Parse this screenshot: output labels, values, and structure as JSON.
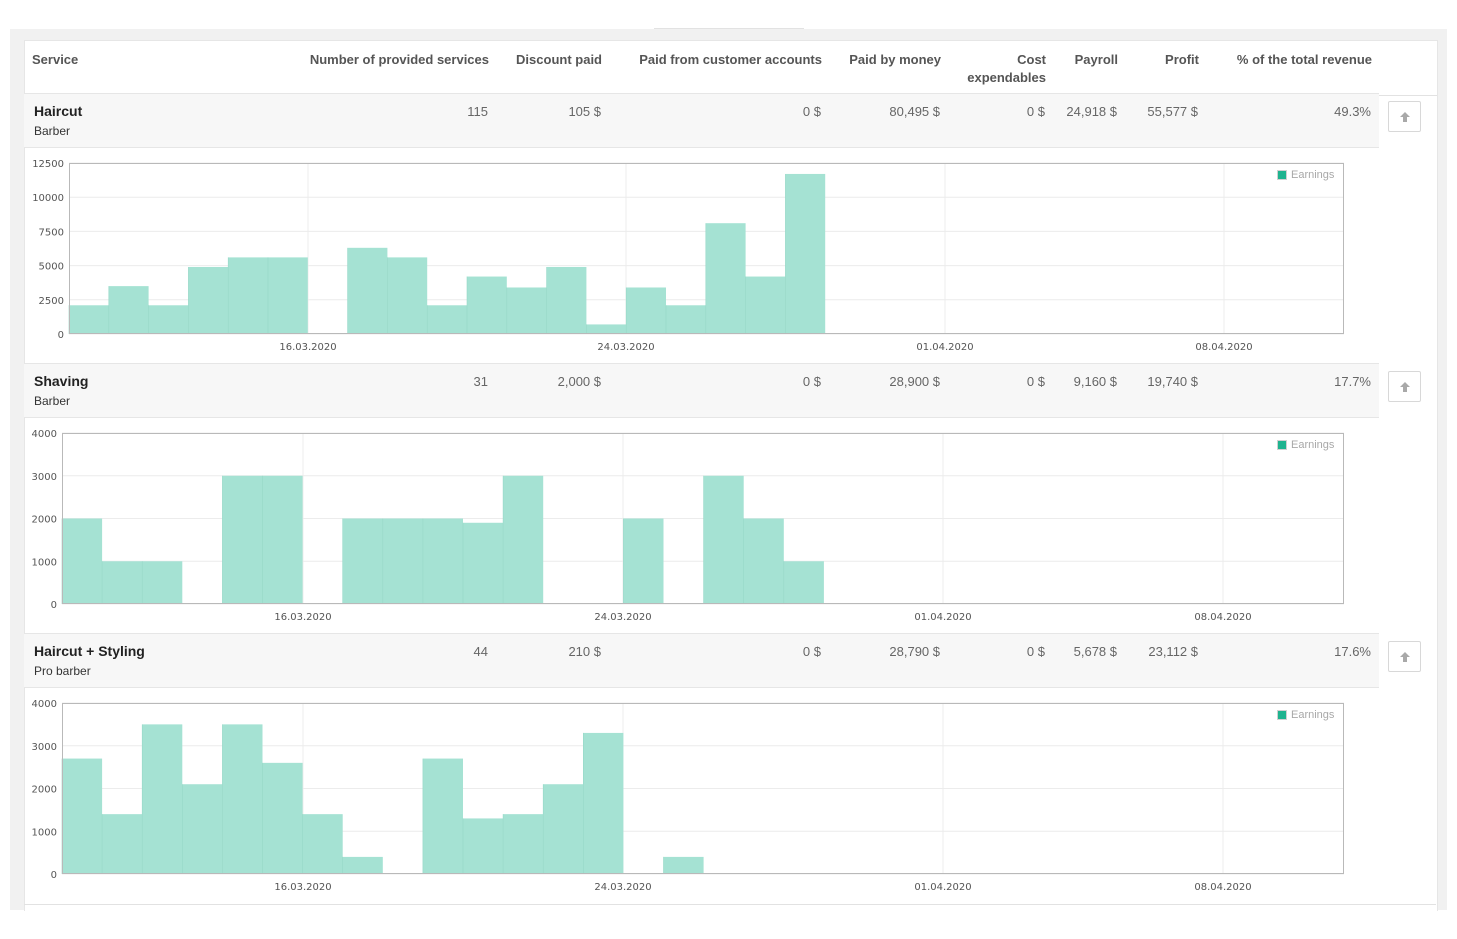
{
  "columns": {
    "service": "Service",
    "count": "Number of provided services",
    "discount": "Discount paid",
    "customer_accounts": "Paid from customer accounts",
    "money": "Paid by money",
    "cost_line1": "Cost",
    "cost_line2": "expendables",
    "payroll": "Payroll",
    "profit": "Profit",
    "share": "% of the total revenue"
  },
  "services": [
    {
      "name": "Haircut",
      "category": "Barber",
      "count": "115",
      "discount": "105 $",
      "customer_accounts": "0 $",
      "money": "80,495 $",
      "cost": "0 $",
      "payroll": "24,918 $",
      "profit": "55,577 $",
      "share": "49.3%"
    },
    {
      "name": "Shaving",
      "category": "Barber",
      "count": "31",
      "discount": "2,000 $",
      "customer_accounts": "0 $",
      "money": "28,900 $",
      "cost": "0 $",
      "payroll": "9,160 $",
      "profit": "19,740 $",
      "share": "17.7%"
    },
    {
      "name": "Haircut + Styling",
      "category": "Pro barber",
      "count": "44",
      "discount": "210 $",
      "customer_accounts": "0 $",
      "money": "28,790 $",
      "cost": "0 $",
      "payroll": "5,678 $",
      "profit": "23,112 $",
      "share": "17.6%"
    }
  ],
  "colors": {
    "bar": "#a5e2d3",
    "legend_swatch": "#1fb38f"
  },
  "chart_data": [
    {
      "type": "bar",
      "legend": "Earnings",
      "ylim": [
        0,
        12500
      ],
      "yticks": [
        0,
        2500,
        5000,
        7500,
        10000,
        12500
      ],
      "date_ticks": [
        "16.03.2020",
        "24.03.2020",
        "01.04.2020",
        "08.04.2020"
      ],
      "values": [
        2100,
        3500,
        2100,
        4900,
        5600,
        5600,
        0,
        6300,
        5600,
        2100,
        4200,
        3400,
        4900,
        700,
        3400,
        2100,
        8100,
        4200,
        11700
      ]
    },
    {
      "type": "bar",
      "legend": "Earnings",
      "ylim": [
        0,
        4000
      ],
      "yticks": [
        0,
        1000,
        2000,
        3000,
        4000
      ],
      "date_ticks": [
        "16.03.2020",
        "24.03.2020",
        "01.04.2020",
        "08.04.2020"
      ],
      "values": [
        2000,
        1000,
        1000,
        0,
        3000,
        3000,
        0,
        2000,
        2000,
        2000,
        1900,
        3000,
        0,
        0,
        2000,
        0,
        3000,
        2000,
        1000
      ]
    },
    {
      "type": "bar",
      "legend": "Earnings",
      "ylim": [
        0,
        4000
      ],
      "yticks": [
        0,
        1000,
        2000,
        3000,
        4000
      ],
      "date_ticks": [
        "16.03.2020",
        "24.03.2020",
        "01.04.2020",
        "08.04.2020"
      ],
      "values": [
        2700,
        1400,
        3500,
        2100,
        3500,
        2600,
        1400,
        400,
        0,
        2700,
        1300,
        1400,
        2100,
        3300,
        0,
        400
      ]
    }
  ]
}
